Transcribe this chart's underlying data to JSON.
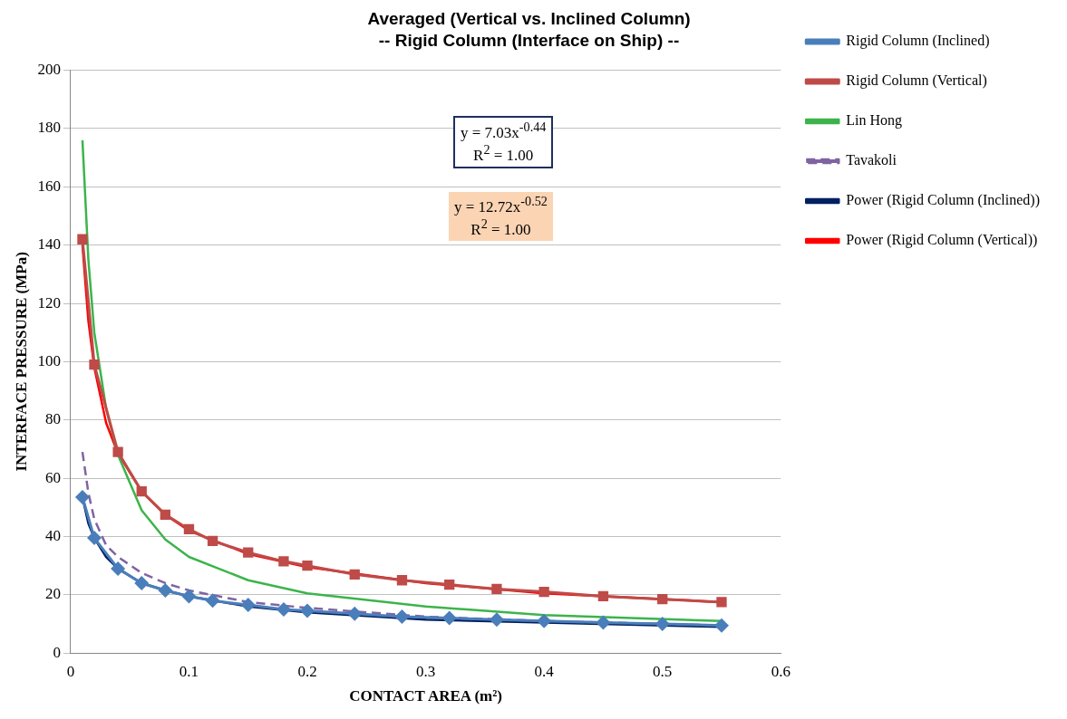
{
  "chart_data": {
    "type": "line",
    "title": "Averaged (Vertical vs. Inclined Column)",
    "subtitle": "-- Rigid Column (Interface on Ship) --",
    "xlabel": "CONTACT AREA (m²)",
    "ylabel": "INTERFACE PRESSURE (MPa)",
    "xlim": [
      0,
      0.6
    ],
    "xticks": [
      0,
      0.1,
      0.2,
      0.3,
      0.4,
      0.5,
      0.6
    ],
    "ylim": [
      0,
      200
    ],
    "yticks": [
      0,
      20,
      40,
      60,
      80,
      100,
      120,
      140,
      160,
      180,
      200
    ],
    "grid": "y",
    "legend": "right",
    "annotations": [
      "y = 7.03x$^{-0.44}$",
      "R$^{2}$ = 1.00",
      "y = 12.72x$^{-0.52}$",
      "R$^{2}$ = 1.00"
    ],
    "series": [
      {
        "name": "Rigid Column (Inclined)",
        "color": "#4a7ebb",
        "marker": "diamond",
        "x": [
          0.01,
          0.02,
          0.04,
          0.06,
          0.08,
          0.1,
          0.12,
          0.15,
          0.18,
          0.2,
          0.24,
          0.28,
          0.32,
          0.36,
          0.4,
          0.45,
          0.5,
          0.55
        ],
        "values": [
          53.5,
          39.5,
          29,
          24,
          21.5,
          19.5,
          18,
          16.5,
          15,
          14.5,
          13.5,
          12.5,
          12,
          11.5,
          11,
          10.5,
          10,
          9.5
        ]
      },
      {
        "name": "Rigid Column (Vertical)",
        "color": "#be4b48",
        "marker": "square",
        "x": [
          0.01,
          0.02,
          0.04,
          0.06,
          0.08,
          0.1,
          0.12,
          0.15,
          0.18,
          0.2,
          0.24,
          0.28,
          0.32,
          0.36,
          0.4,
          0.45,
          0.5,
          0.55
        ],
        "values": [
          142,
          99,
          69,
          55.5,
          47.5,
          42.5,
          38.5,
          34.5,
          31.5,
          30,
          27,
          25,
          23.5,
          22,
          21,
          19.5,
          18.5,
          17.5
        ]
      },
      {
        "name": "Lin Hong",
        "color": "#3cb44b",
        "marker": "none",
        "x": [
          0.01,
          0.015,
          0.02,
          0.03,
          0.04,
          0.06,
          0.08,
          0.1,
          0.15,
          0.2,
          0.3,
          0.4,
          0.55
        ],
        "values": [
          176,
          135,
          110,
          84,
          68,
          49,
          39,
          33,
          25,
          20.5,
          16,
          13,
          11
        ]
      },
      {
        "name": "Tavakoli",
        "color": "#8064a2",
        "marker": "none",
        "line_style": "dashed",
        "x": [
          0.01,
          0.015,
          0.02,
          0.03,
          0.04,
          0.06,
          0.08,
          0.1,
          0.15,
          0.2,
          0.3,
          0.4,
          0.55
        ],
        "values": [
          69,
          55,
          46,
          37,
          33,
          27.5,
          24,
          21.5,
          17.5,
          15.5,
          12.5,
          11,
          9.5
        ]
      },
      {
        "name": "Power (Rigid Column (Inclined))",
        "color": "#002060",
        "marker": "none",
        "x": [
          0.01,
          0.015,
          0.02,
          0.03,
          0.04,
          0.06,
          0.08,
          0.1,
          0.15,
          0.2,
          0.3,
          0.4,
          0.55
        ],
        "values": [
          53.5,
          44.5,
          39.5,
          33,
          29,
          24,
          21.5,
          19.5,
          16,
          14,
          11.5,
          10.5,
          9
        ]
      },
      {
        "name": "Power (Rigid Column (Vertical))",
        "color": "#ff0000",
        "marker": "none",
        "x": [
          0.01,
          0.015,
          0.02,
          0.03,
          0.04,
          0.06,
          0.08,
          0.1,
          0.15,
          0.2,
          0.3,
          0.4,
          0.55
        ],
        "values": [
          140,
          114,
          98,
          79,
          68.5,
          55.5,
          47.5,
          42,
          34,
          29.5,
          24,
          20.5,
          17.5
        ]
      }
    ]
  }
}
